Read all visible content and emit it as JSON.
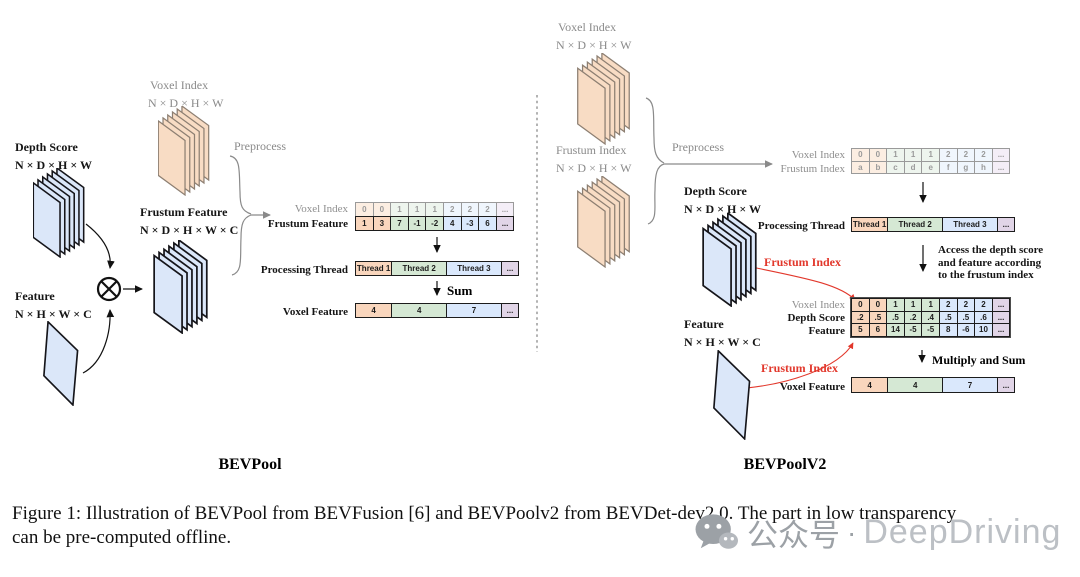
{
  "palette": {
    "orange_fill": "#f9d6bd",
    "orange_border": "#b85a48",
    "green_fill": "#d5e8d4",
    "green_border": "#82b366",
    "blue_fill": "#dae8fc",
    "blue_border": "#6c8ebf",
    "purple_fill": "#e1d5e7",
    "purple_border": "#9673a6",
    "red_accent": "#e2382c",
    "gray_text": "#8a8a8a"
  },
  "left": {
    "title": "BEVPool",
    "voxel_index_stack": {
      "label": "Voxel Index",
      "dims": "N × D × H × W"
    },
    "depth_score": {
      "label": "Depth Score",
      "dims": "N × D × H × W"
    },
    "frustum_feature": {
      "label": "Frustum Feature",
      "dims": "N × D × H × W × C"
    },
    "feature": {
      "label": "Feature",
      "dims": "N × H × W × C"
    },
    "preprocess": "Preprocess",
    "index_row": {
      "label": "Voxel Index",
      "cells": [
        "0",
        "0",
        "1",
        "1",
        "1",
        "2",
        "2",
        "2",
        "..."
      ]
    },
    "feature_row": {
      "label": "Frustum Feature",
      "cells": [
        "1",
        "3",
        "7",
        "-1",
        "-2",
        "4",
        "-3",
        "6",
        "..."
      ]
    },
    "thread_row": {
      "label": "Processing Thread",
      "cells": [
        "Thread 1",
        "Thread 2",
        "Thread 3",
        "..."
      ]
    },
    "sum": "Sum",
    "voxel_feature_row": {
      "label": "Voxel Feature",
      "cells": [
        "4",
        "4",
        "7",
        "..."
      ]
    }
  },
  "right": {
    "title": "BEVPoolV2",
    "voxel_index_stack": {
      "label": "Voxel Index",
      "dims": "N × D × H × W"
    },
    "frustum_index_stack": {
      "label": "Frustum Index",
      "dims": "N × D × H × W"
    },
    "depth_score": {
      "label": "Depth Score",
      "dims": "N × D × H × W"
    },
    "feature": {
      "label": "Feature",
      "dims": "N × H × W × C"
    },
    "preprocess": "Preprocess",
    "index_row": {
      "label": "Voxel Index",
      "cells": [
        "0",
        "0",
        "1",
        "1",
        "1",
        "2",
        "2",
        "2",
        "..."
      ]
    },
    "frustum_row": {
      "label": "Frustum Index",
      "cells": [
        "a",
        "b",
        "c",
        "d",
        "e",
        "f",
        "g",
        "h",
        "..."
      ]
    },
    "thread_row": {
      "label": "Processing Thread",
      "cells": [
        "Thread 1",
        "Thread 2",
        "Thread 3",
        "..."
      ]
    },
    "access_note": [
      "Access the depth score",
      "and feature according",
      "to the frustum index"
    ],
    "frustum_index_annotation": "Frustum Index",
    "table": {
      "index_row": {
        "label": "Voxel Index",
        "cells": [
          "0",
          "0",
          "1",
          "1",
          "1",
          "2",
          "2",
          "2",
          "..."
        ]
      },
      "depth_row": {
        "label": "Depth Score",
        "cells": [
          ".2",
          ".5",
          ".5",
          ".2",
          ".4",
          ".5",
          ".5",
          ".6",
          "..."
        ]
      },
      "feature_row": {
        "label": "Feature",
        "cells": [
          "5",
          "6",
          "14",
          "-5",
          "-5",
          "8",
          "-6",
          "10",
          "..."
        ]
      }
    },
    "multiply_sum": "Multiply and Sum",
    "voxel_feature_row": {
      "label": "Voxel Feature",
      "cells": [
        "4",
        "4",
        "7",
        "..."
      ]
    }
  },
  "caption": {
    "line1": "Figure 1: Illustration of BEVPool from BEVFusion [6] and BEVPoolv2 from BEVDet-dev2.0. The part in low transparency",
    "line2": "can be pre-computed offline."
  },
  "watermark": {
    "text_cn": "公众号",
    "separator": "·",
    "text_en": "DeepDriving"
  }
}
